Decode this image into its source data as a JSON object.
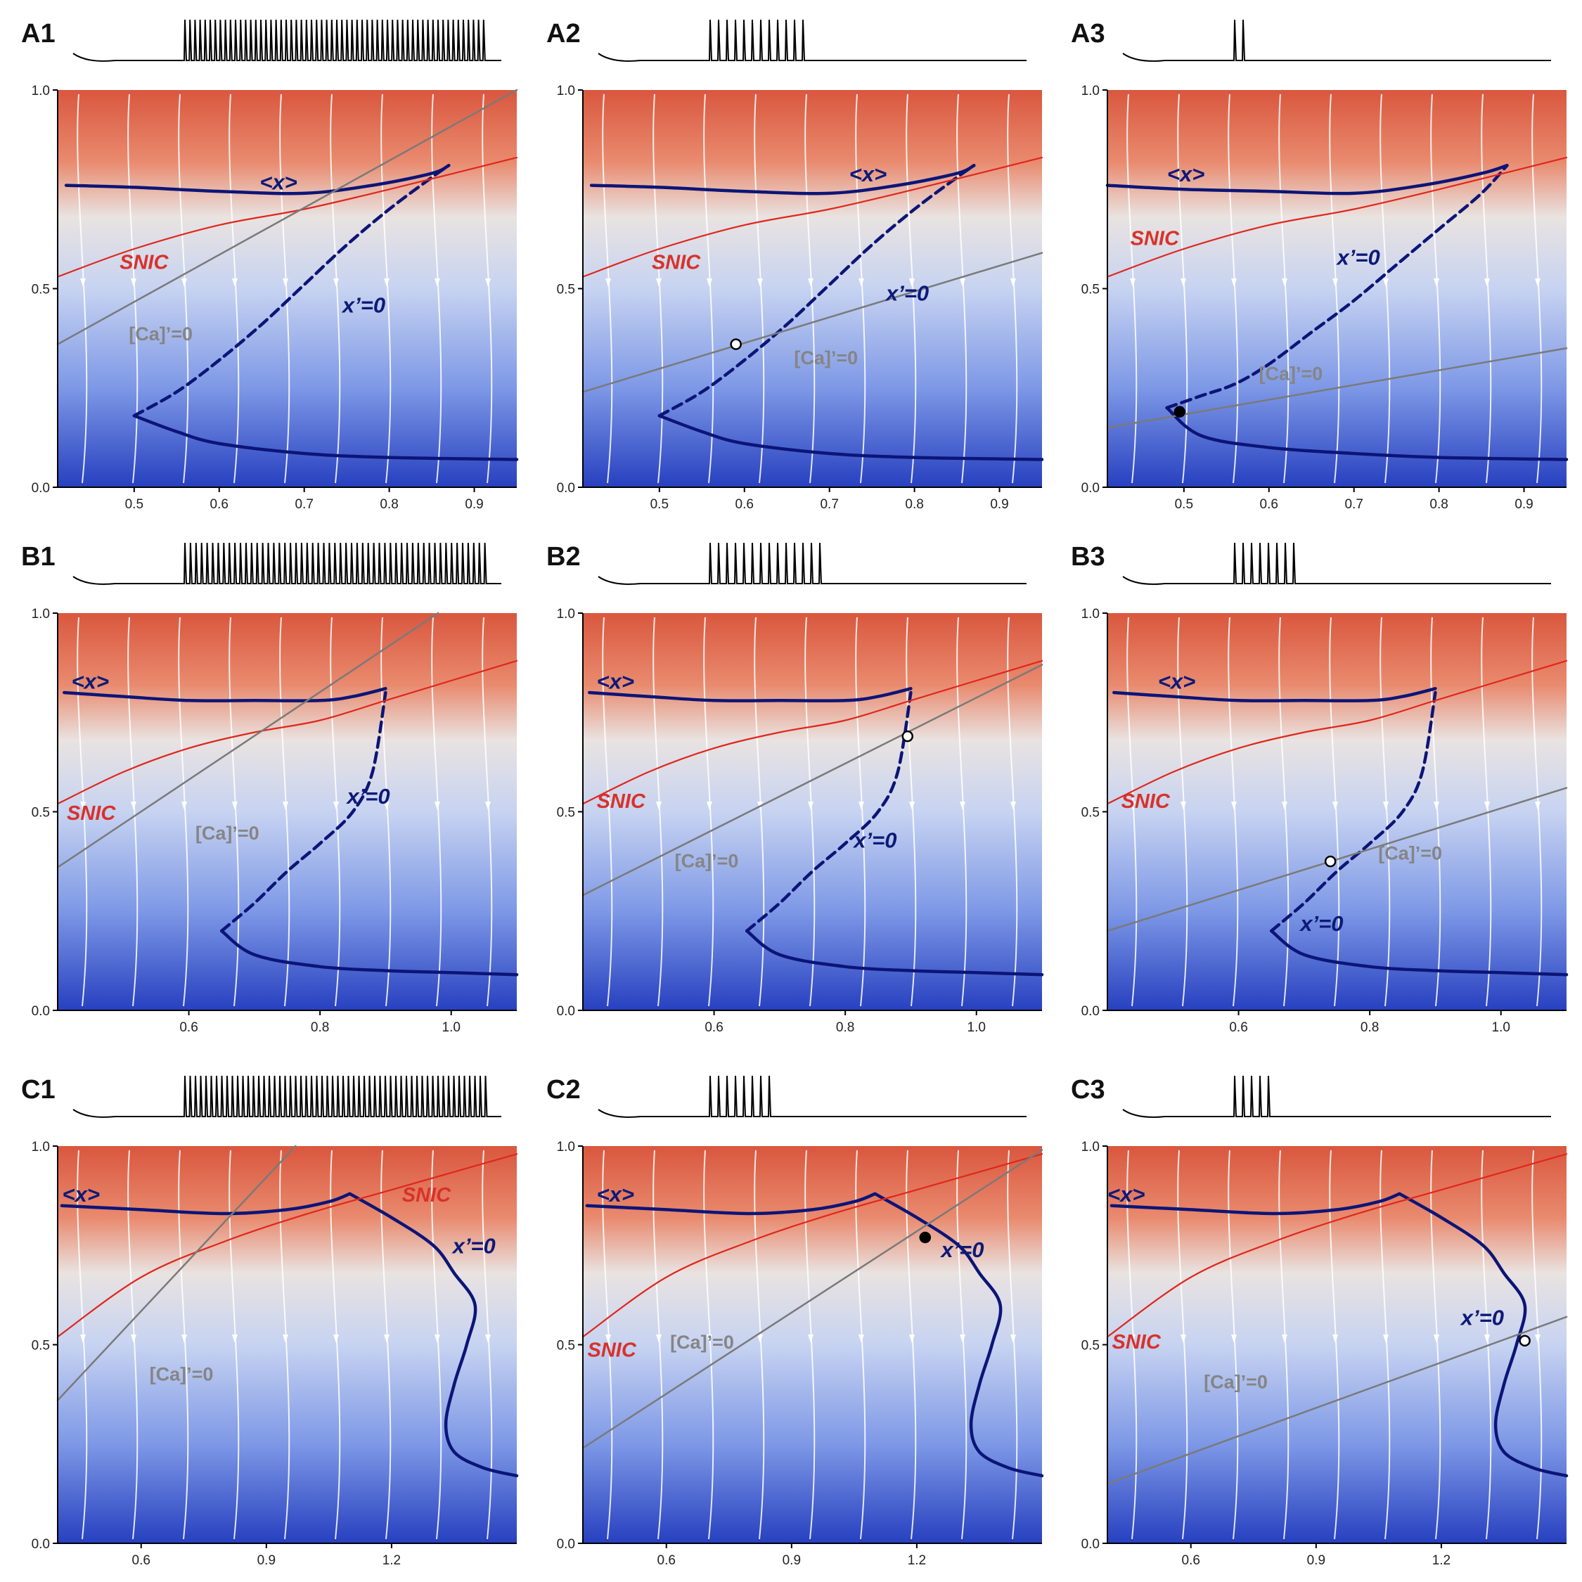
{
  "figure": {
    "panel_count": 9,
    "layout": "3x3"
  },
  "colors": {
    "background_high": "#df6a4e",
    "background_mid": "#e6e1df",
    "background_low": "#2e48c4",
    "streamline": "#ffffff",
    "x_nullcline": "#0c1577",
    "snic": "#e0271c",
    "ca_nullcline": "#7a7a7a",
    "trajectory": "#000000"
  },
  "chart_data": [
    {
      "type": "line",
      "panel": "A1",
      "ylim": [
        0.0,
        1.0
      ],
      "xlim": [
        0.41,
        0.95
      ],
      "xticks": [
        "0.5",
        "0.6",
        "0.7",
        "0.8",
        "0.9"
      ],
      "yticks": [
        "0.0",
        "0.5",
        "1.0"
      ],
      "annotations": [
        "<x>",
        "SNIC",
        "x’=0",
        "[Ca]’=0"
      ],
      "series": [
        {
          "role": "x_nullcline_lower",
          "x": [
            0.5,
            0.55,
            0.6,
            0.7,
            0.8,
            0.95
          ],
          "y": [
            0.18,
            0.14,
            0.11,
            0.085,
            0.075,
            0.07
          ]
        },
        {
          "role": "x_nullcline_middle",
          "x": [
            0.5,
            0.55,
            0.6,
            0.65,
            0.7,
            0.75,
            0.8,
            0.85,
            0.87
          ],
          "y": [
            0.18,
            0.24,
            0.32,
            0.41,
            0.51,
            0.61,
            0.7,
            0.78,
            0.81
          ]
        },
        {
          "role": "x_nullcline_upper",
          "x": [
            0.42,
            0.5,
            0.6,
            0.7,
            0.78,
            0.85,
            0.87
          ],
          "y": [
            0.76,
            0.755,
            0.745,
            0.74,
            0.76,
            0.79,
            0.81
          ]
        },
        {
          "role": "snic",
          "x": [
            0.41,
            0.5,
            0.6,
            0.7,
            0.8,
            0.95
          ],
          "y": [
            0.53,
            0.6,
            0.66,
            0.7,
            0.75,
            0.83
          ]
        },
        {
          "role": "ca_nullcline",
          "x": [
            0.41,
            0.95
          ],
          "y": [
            0.36,
            1.0
          ]
        }
      ]
    },
    {
      "type": "line",
      "panel": "A2",
      "ylim": [
        0.0,
        1.0
      ],
      "xlim": [
        0.41,
        0.95
      ],
      "xticks": [
        "0.5",
        "0.6",
        "0.7",
        "0.8",
        "0.9"
      ],
      "yticks": [
        "0.0",
        "0.5",
        "1.0"
      ],
      "annotations": [
        "<x>",
        "SNIC",
        "x’=0",
        "[Ca]’=0"
      ],
      "fixed_points": [
        {
          "x": 0.59,
          "y": 0.36,
          "stability": "unstable"
        }
      ],
      "series": [
        {
          "role": "x_nullcline_lower",
          "x": [
            0.5,
            0.55,
            0.6,
            0.7,
            0.8,
            0.95
          ],
          "y": [
            0.18,
            0.14,
            0.11,
            0.085,
            0.075,
            0.07
          ]
        },
        {
          "role": "x_nullcline_middle",
          "x": [
            0.5,
            0.55,
            0.6,
            0.65,
            0.7,
            0.75,
            0.8,
            0.85,
            0.87
          ],
          "y": [
            0.18,
            0.24,
            0.32,
            0.41,
            0.51,
            0.61,
            0.7,
            0.78,
            0.81
          ]
        },
        {
          "role": "x_nullcline_upper",
          "x": [
            0.42,
            0.5,
            0.6,
            0.7,
            0.78,
            0.85,
            0.87
          ],
          "y": [
            0.76,
            0.755,
            0.745,
            0.74,
            0.76,
            0.79,
            0.81
          ]
        },
        {
          "role": "snic",
          "x": [
            0.41,
            0.5,
            0.6,
            0.7,
            0.8,
            0.95
          ],
          "y": [
            0.53,
            0.6,
            0.66,
            0.7,
            0.75,
            0.83
          ]
        },
        {
          "role": "ca_nullcline",
          "x": [
            0.41,
            0.95
          ],
          "y": [
            0.24,
            0.59
          ]
        }
      ]
    },
    {
      "type": "line",
      "panel": "A3",
      "ylim": [
        0.0,
        1.0
      ],
      "xlim": [
        0.41,
        0.95
      ],
      "xticks": [
        "0.5",
        "0.6",
        "0.7",
        "0.8",
        "0.9"
      ],
      "yticks": [
        "0.0",
        "0.5",
        "1.0"
      ],
      "annotations": [
        "<x>",
        "SNIC",
        "x’=0",
        "[Ca]’=0"
      ],
      "fixed_points": [
        {
          "x": 0.495,
          "y": 0.19,
          "stability": "stable"
        }
      ],
      "series": [
        {
          "role": "x_nullcline_lower",
          "x": [
            0.48,
            0.52,
            0.6,
            0.7,
            0.8,
            0.95
          ],
          "y": [
            0.2,
            0.13,
            0.1,
            0.085,
            0.075,
            0.07
          ]
        },
        {
          "role": "x_nullcline_middle",
          "x": [
            0.48,
            0.52,
            0.56,
            0.6,
            0.65,
            0.7,
            0.75,
            0.8,
            0.85,
            0.88
          ],
          "y": [
            0.2,
            0.23,
            0.26,
            0.31,
            0.39,
            0.47,
            0.56,
            0.65,
            0.74,
            0.81
          ]
        },
        {
          "role": "x_nullcline_upper",
          "x": [
            0.41,
            0.5,
            0.6,
            0.7,
            0.78,
            0.85,
            0.88
          ],
          "y": [
            0.76,
            0.75,
            0.745,
            0.74,
            0.76,
            0.79,
            0.81
          ]
        },
        {
          "role": "snic",
          "x": [
            0.41,
            0.5,
            0.6,
            0.7,
            0.8,
            0.95
          ],
          "y": [
            0.53,
            0.6,
            0.66,
            0.7,
            0.75,
            0.83
          ]
        },
        {
          "role": "ca_nullcline",
          "x": [
            0.41,
            0.95
          ],
          "y": [
            0.15,
            0.35
          ]
        }
      ]
    },
    {
      "type": "line",
      "panel": "B1",
      "ylim": [
        0.0,
        1.0
      ],
      "xlim": [
        0.4,
        1.1
      ],
      "xticks": [
        "0.6",
        "0.8",
        "1.0"
      ],
      "yticks": [
        "0.0",
        "0.5",
        "1.0"
      ],
      "annotations": [
        "<x>",
        "SNIC",
        "x’=0",
        "[Ca]’=0"
      ],
      "series": [
        {
          "role": "x_nullcline_lower",
          "x": [
            0.65,
            0.7,
            0.8,
            0.9,
            1.0,
            1.1
          ],
          "y": [
            0.2,
            0.14,
            0.11,
            0.1,
            0.095,
            0.09
          ]
        },
        {
          "role": "x_nullcline_middle",
          "x": [
            0.65,
            0.7,
            0.75,
            0.8,
            0.85,
            0.88,
            0.9
          ],
          "y": [
            0.2,
            0.27,
            0.35,
            0.42,
            0.5,
            0.6,
            0.8
          ]
        },
        {
          "role": "x_nullcline_upper",
          "x": [
            0.41,
            0.5,
            0.6,
            0.7,
            0.8,
            0.85,
            0.9
          ],
          "y": [
            0.8,
            0.79,
            0.78,
            0.78,
            0.78,
            0.79,
            0.81
          ]
        },
        {
          "role": "snic",
          "x": [
            0.4,
            0.5,
            0.6,
            0.7,
            0.8,
            0.9,
            1.0,
            1.1
          ],
          "y": [
            0.52,
            0.6,
            0.66,
            0.7,
            0.73,
            0.78,
            0.83,
            0.88
          ]
        },
        {
          "role": "ca_nullcline",
          "x": [
            0.4,
            0.98
          ],
          "y": [
            0.36,
            1.0
          ]
        }
      ]
    },
    {
      "type": "line",
      "panel": "B2",
      "ylim": [
        0.0,
        1.0
      ],
      "xlim": [
        0.4,
        1.1
      ],
      "xticks": [
        "0.6",
        "0.8",
        "1.0"
      ],
      "yticks": [
        "0.0",
        "0.5",
        "1.0"
      ],
      "annotations": [
        "<x>",
        "SNIC",
        "x’=0",
        "[Ca]’=0"
      ],
      "fixed_points": [
        {
          "x": 0.895,
          "y": 0.69,
          "stability": "unstable"
        }
      ],
      "series": [
        {
          "role": "x_nullcline_lower",
          "x": [
            0.65,
            0.7,
            0.8,
            0.9,
            1.0,
            1.1
          ],
          "y": [
            0.2,
            0.14,
            0.11,
            0.1,
            0.095,
            0.09
          ]
        },
        {
          "role": "x_nullcline_middle",
          "x": [
            0.65,
            0.7,
            0.75,
            0.8,
            0.85,
            0.88,
            0.9
          ],
          "y": [
            0.2,
            0.27,
            0.35,
            0.42,
            0.5,
            0.6,
            0.8
          ]
        },
        {
          "role": "x_nullcline_upper",
          "x": [
            0.41,
            0.5,
            0.6,
            0.7,
            0.8,
            0.85,
            0.9
          ],
          "y": [
            0.8,
            0.79,
            0.78,
            0.78,
            0.78,
            0.79,
            0.81
          ]
        },
        {
          "role": "snic",
          "x": [
            0.4,
            0.5,
            0.6,
            0.7,
            0.8,
            0.9,
            1.0,
            1.1
          ],
          "y": [
            0.52,
            0.6,
            0.66,
            0.7,
            0.73,
            0.78,
            0.83,
            0.88
          ]
        },
        {
          "role": "ca_nullcline",
          "x": [
            0.4,
            1.1
          ],
          "y": [
            0.29,
            0.87
          ]
        }
      ]
    },
    {
      "type": "line",
      "panel": "B3",
      "ylim": [
        0.0,
        1.0
      ],
      "xlim": [
        0.4,
        1.1
      ],
      "xticks": [
        "0.6",
        "0.8",
        "1.0"
      ],
      "yticks": [
        "0.0",
        "0.5",
        "1.0"
      ],
      "annotations": [
        "<x>",
        "SNIC",
        "x’=0",
        "[Ca]’=0"
      ],
      "fixed_points": [
        {
          "x": 0.74,
          "y": 0.375,
          "stability": "unstable"
        }
      ],
      "series": [
        {
          "role": "x_nullcline_lower",
          "x": [
            0.65,
            0.7,
            0.8,
            0.9,
            1.0,
            1.1
          ],
          "y": [
            0.2,
            0.14,
            0.11,
            0.1,
            0.095,
            0.09
          ]
        },
        {
          "role": "x_nullcline_middle",
          "x": [
            0.65,
            0.7,
            0.75,
            0.8,
            0.85,
            0.88,
            0.9
          ],
          "y": [
            0.2,
            0.27,
            0.35,
            0.42,
            0.5,
            0.6,
            0.8
          ]
        },
        {
          "role": "x_nullcline_upper",
          "x": [
            0.41,
            0.5,
            0.6,
            0.7,
            0.8,
            0.85,
            0.9
          ],
          "y": [
            0.8,
            0.79,
            0.78,
            0.78,
            0.78,
            0.79,
            0.81
          ]
        },
        {
          "role": "snic",
          "x": [
            0.4,
            0.5,
            0.6,
            0.7,
            0.8,
            0.9,
            1.0,
            1.1
          ],
          "y": [
            0.52,
            0.6,
            0.66,
            0.7,
            0.73,
            0.78,
            0.83,
            0.88
          ]
        },
        {
          "role": "ca_nullcline",
          "x": [
            0.4,
            1.1
          ],
          "y": [
            0.2,
            0.56
          ]
        }
      ]
    },
    {
      "type": "line",
      "panel": "C1",
      "ylim": [
        0.0,
        1.0
      ],
      "xlim": [
        0.4,
        1.5
      ],
      "xticks": [
        "0.6",
        "0.9",
        "1.2"
      ],
      "yticks": [
        "0.0",
        "0.5",
        "1.0"
      ],
      "annotations": [
        "<x>",
        "SNIC",
        "x’=0",
        "[Ca]’=0"
      ],
      "series": [
        {
          "role": "x_nullcline_upper",
          "x": [
            0.41,
            0.6,
            0.8,
            0.95,
            1.05,
            1.1
          ],
          "y": [
            0.85,
            0.84,
            0.83,
            0.84,
            0.86,
            0.88
          ]
        },
        {
          "role": "x_nullcline_right",
          "x": [
            1.1,
            1.2,
            1.3,
            1.35,
            1.4,
            1.38,
            1.35,
            1.33,
            1.35,
            1.42,
            1.5
          ],
          "y": [
            0.88,
            0.82,
            0.75,
            0.68,
            0.6,
            0.5,
            0.4,
            0.3,
            0.23,
            0.19,
            0.17
          ]
        },
        {
          "role": "snic",
          "x": [
            0.4,
            0.6,
            0.8,
            1.0,
            1.2,
            1.5
          ],
          "y": [
            0.52,
            0.67,
            0.76,
            0.83,
            0.89,
            0.98
          ]
        },
        {
          "role": "ca_nullcline",
          "x": [
            0.4,
            0.97
          ],
          "y": [
            0.36,
            1.0
          ]
        }
      ]
    },
    {
      "type": "line",
      "panel": "C2",
      "ylim": [
        0.0,
        1.0
      ],
      "xlim": [
        0.4,
        1.5
      ],
      "xticks": [
        "0.6",
        "0.9",
        "1.2"
      ],
      "yticks": [
        "0.0",
        "0.5",
        "1.0"
      ],
      "annotations": [
        "<x>",
        "SNIC",
        "x’=0",
        "[Ca]’=0"
      ],
      "fixed_points": [
        {
          "x": 1.22,
          "y": 0.77,
          "stability": "stable"
        }
      ],
      "series": [
        {
          "role": "x_nullcline_upper",
          "x": [
            0.41,
            0.6,
            0.8,
            0.95,
            1.05,
            1.1
          ],
          "y": [
            0.85,
            0.84,
            0.83,
            0.84,
            0.86,
            0.88
          ]
        },
        {
          "role": "x_nullcline_right",
          "x": [
            1.1,
            1.2,
            1.3,
            1.35,
            1.4,
            1.38,
            1.35,
            1.33,
            1.35,
            1.42,
            1.5
          ],
          "y": [
            0.88,
            0.82,
            0.75,
            0.68,
            0.6,
            0.5,
            0.4,
            0.3,
            0.23,
            0.19,
            0.17
          ]
        },
        {
          "role": "snic",
          "x": [
            0.4,
            0.6,
            0.8,
            1.0,
            1.2,
            1.5
          ],
          "y": [
            0.52,
            0.67,
            0.76,
            0.83,
            0.89,
            0.98
          ]
        },
        {
          "role": "ca_nullcline",
          "x": [
            0.4,
            1.5
          ],
          "y": [
            0.24,
            0.99
          ]
        }
      ]
    },
    {
      "type": "line",
      "panel": "C3",
      "ylim": [
        0.0,
        1.0
      ],
      "xlim": [
        0.4,
        1.5
      ],
      "xticks": [
        "0.6",
        "0.9",
        "1.2"
      ],
      "yticks": [
        "0.0",
        "0.5",
        "1.0"
      ],
      "annotations": [
        "<x>",
        "SNIC",
        "x’=0",
        "[Ca]’=0"
      ],
      "fixed_points": [
        {
          "x": 1.4,
          "y": 0.51,
          "stability": "unstable"
        }
      ],
      "series": [
        {
          "role": "x_nullcline_upper",
          "x": [
            0.41,
            0.6,
            0.8,
            0.95,
            1.05,
            1.1
          ],
          "y": [
            0.85,
            0.84,
            0.83,
            0.84,
            0.86,
            0.88
          ]
        },
        {
          "role": "x_nullcline_right",
          "x": [
            1.1,
            1.2,
            1.3,
            1.35,
            1.4,
            1.38,
            1.35,
            1.33,
            1.35,
            1.42,
            1.5
          ],
          "y": [
            0.88,
            0.82,
            0.75,
            0.68,
            0.6,
            0.5,
            0.4,
            0.3,
            0.23,
            0.19,
            0.17
          ]
        },
        {
          "role": "snic",
          "x": [
            0.4,
            0.6,
            0.8,
            1.0,
            1.2,
            1.5
          ],
          "y": [
            0.52,
            0.67,
            0.76,
            0.83,
            0.89,
            0.98
          ]
        },
        {
          "role": "ca_nullcline",
          "x": [
            0.4,
            1.5
          ],
          "y": [
            0.15,
            0.57
          ]
        }
      ]
    }
  ]
}
